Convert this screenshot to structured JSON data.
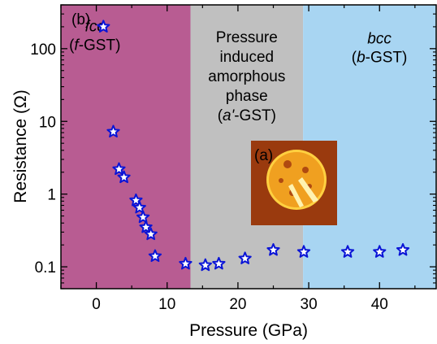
{
  "chart_data": {
    "type": "scatter",
    "title": "",
    "xlabel": "Pressure (GPa)",
    "ylabel": "Resistance (Ω)",
    "xlim": [
      -5,
      48
    ],
    "ylim": [
      0.05,
      400
    ],
    "y_scale": "log",
    "grid": false,
    "x_ticks": [
      {
        "value": 0,
        "label": "0"
      },
      {
        "value": 10,
        "label": "10"
      },
      {
        "value": 20,
        "label": "20"
      },
      {
        "value": 30,
        "label": "30"
      },
      {
        "value": 40,
        "label": "40"
      }
    ],
    "y_ticks": [
      {
        "value": 0.1,
        "label": "0.1"
      },
      {
        "value": 1,
        "label": "1"
      },
      {
        "value": 10,
        "label": "10"
      },
      {
        "value": 100,
        "label": "100"
      }
    ],
    "marker": {
      "shape": "star",
      "stroke_color": "#0a14d6",
      "fill_color": "#ffffff"
    },
    "regions": [
      {
        "x_range": [
          -5,
          13.3
        ],
        "color": "#b85c92",
        "lines": [
          {
            "parts": [
              {
                "text": "fcc",
                "italic": true
              }
            ]
          },
          {
            "parts": [
              {
                "text": "(",
                "italic": false
              },
              {
                "text": "f",
                "italic": true
              },
              {
                "text": "-GST)",
                "italic": false
              }
            ]
          }
        ]
      },
      {
        "x_range": [
          13.3,
          29.2
        ],
        "color": "#c0c0c0",
        "lines": [
          {
            "parts": [
              {
                "text": "Pressure",
                "italic": false
              }
            ]
          },
          {
            "parts": [
              {
                "text": "induced",
                "italic": false
              }
            ]
          },
          {
            "parts": [
              {
                "text": "amorphous",
                "italic": false
              }
            ]
          },
          {
            "parts": [
              {
                "text": "phase",
                "italic": false
              }
            ]
          },
          {
            "parts": [
              {
                "text": "(",
                "italic": false
              },
              {
                "text": "a'",
                "italic": true
              },
              {
                "text": "-GST)",
                "italic": false
              }
            ]
          }
        ]
      },
      {
        "x_range": [
          29.2,
          48
        ],
        "color": "#a8d5f2",
        "lines": [
          {
            "parts": [
              {
                "text": "bcc",
                "italic": true
              }
            ]
          },
          {
            "parts": [
              {
                "text": "(",
                "italic": false
              },
              {
                "text": "b",
                "italic": true
              },
              {
                "text": "-GST)",
                "italic": false
              }
            ]
          }
        ]
      }
    ],
    "annotations": [
      {
        "text": "(b)"
      },
      {
        "text": "(a)"
      }
    ],
    "series": [
      {
        "points": [
          {
            "x": 1.0,
            "y": 200
          },
          {
            "x": 2.4,
            "y": 7.2
          },
          {
            "x": 3.2,
            "y": 2.2
          },
          {
            "x": 3.9,
            "y": 1.7
          },
          {
            "x": 5.6,
            "y": 0.82
          },
          {
            "x": 6.1,
            "y": 0.65
          },
          {
            "x": 6.6,
            "y": 0.48
          },
          {
            "x": 7.0,
            "y": 0.35
          },
          {
            "x": 7.7,
            "y": 0.28
          },
          {
            "x": 8.3,
            "y": 0.14
          },
          {
            "x": 12.6,
            "y": 0.11
          },
          {
            "x": 15.4,
            "y": 0.105
          },
          {
            "x": 17.3,
            "y": 0.11
          },
          {
            "x": 21.0,
            "y": 0.13
          },
          {
            "x": 25.0,
            "y": 0.17
          },
          {
            "x": 29.3,
            "y": 0.16
          },
          {
            "x": 35.5,
            "y": 0.16
          },
          {
            "x": 40.0,
            "y": 0.16
          },
          {
            "x": 43.3,
            "y": 0.17
          }
        ]
      }
    ]
  },
  "inset": {
    "colors": {
      "background": "#9a3a0e",
      "disk": "#f0a020",
      "disk_edge": "#ffd040",
      "spot": "#b04a10",
      "streak": "#fff2b0"
    }
  }
}
